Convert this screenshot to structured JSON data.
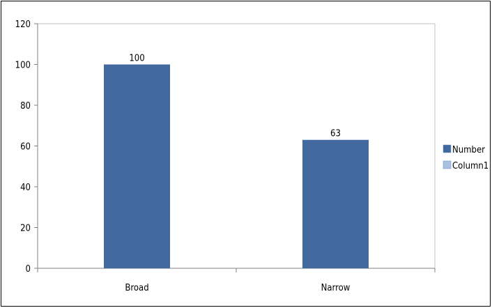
{
  "chart_data": {
    "type": "bar",
    "categories": [
      "Broad",
      "Narrow"
    ],
    "series": [
      {
        "name": "Number",
        "values": [
          100,
          63
        ],
        "color": "#4169A0"
      },
      {
        "name": "Column1",
        "values": [
          null,
          null
        ],
        "color": "#A8C1E0"
      }
    ],
    "data_labels": [
      "100",
      "63"
    ],
    "ylim": [
      0,
      120
    ],
    "yticks": [
      0,
      20,
      40,
      60,
      80,
      100,
      120
    ],
    "grid": false,
    "legend_position": "right",
    "title": "",
    "xlabel": "",
    "ylabel": ""
  }
}
